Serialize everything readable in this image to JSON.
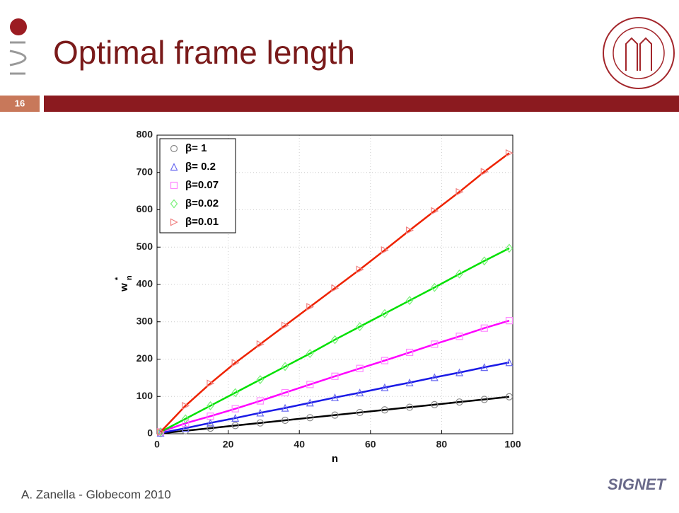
{
  "slide": {
    "title": "Optimal frame length",
    "page_number": "16",
    "footer": "A. Zanella - Globecom 2010",
    "logo_text": "SIGNET"
  },
  "chart_data": {
    "type": "line",
    "xlabel": "n",
    "ylabel": "w",
    "ylabel_superscript": "*",
    "ylabel_subscript": "n",
    "x": [
      1,
      8,
      15,
      22,
      29,
      36,
      43,
      50,
      57,
      64,
      71,
      78,
      85,
      92,
      99
    ],
    "xlim": [
      0,
      100
    ],
    "xticks": [
      0,
      20,
      40,
      60,
      80,
      100
    ],
    "ylim": [
      0,
      800
    ],
    "yticks": [
      0,
      100,
      200,
      300,
      400,
      500,
      600,
      700,
      800
    ],
    "grid": true,
    "legend": "upper left",
    "series": [
      {
        "name": "β= 1",
        "color": "#000000",
        "marker": "circle",
        "marker_color": "#888888",
        "values": [
          1,
          8,
          15,
          22,
          29,
          36,
          43,
          50,
          57,
          64,
          71,
          78,
          85,
          92,
          99
        ]
      },
      {
        "name": "β= 0.2",
        "color": "#1a1ae6",
        "marker": "triangle-up",
        "marker_color": "#6a6af0",
        "values": [
          2,
          15,
          29,
          42,
          56,
          69,
          83,
          97,
          110,
          124,
          137,
          151,
          164,
          178,
          191
        ]
      },
      {
        "name": "β=0.07",
        "color": "#ff00ff",
        "marker": "square",
        "marker_color": "#ff88ff",
        "values": [
          5,
          28,
          47,
          67,
          88,
          110,
          132,
          154,
          175,
          196,
          218,
          240,
          261,
          283,
          303
        ]
      },
      {
        "name": "β=0.02",
        "color": "#00e000",
        "marker": "diamond",
        "marker_color": "#77f077",
        "values": [
          5,
          40,
          75,
          110,
          145,
          180,
          215,
          252,
          287,
          322,
          357,
          392,
          428,
          463,
          497
        ]
      },
      {
        "name": "β=0.01",
        "color": "#ee2200",
        "marker": "triangle-right",
        "marker_color": "#f08080",
        "values": [
          5,
          75,
          135,
          190,
          240,
          290,
          340,
          390,
          440,
          492,
          545,
          597,
          648,
          702,
          752
        ]
      }
    ]
  }
}
